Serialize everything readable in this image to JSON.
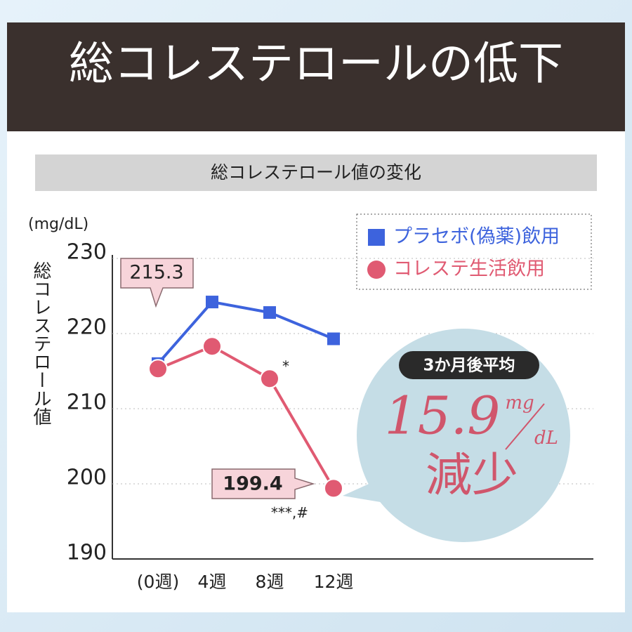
{
  "header": {
    "title": "総コレステロールの低下"
  },
  "chart_data": {
    "type": "line",
    "title": "総コレステロール値の変化",
    "y_unit": "(mg/dL)",
    "y_label": "総コレステロール値",
    "categories": [
      "(0週)",
      "4週",
      "8週",
      "12週"
    ],
    "ylim": [
      190,
      230
    ],
    "yticks": [
      190,
      200,
      210,
      220,
      230
    ],
    "grid": true,
    "legend": "top-right",
    "series": [
      {
        "name": "プラセボ(偽薬)飲用",
        "color": "#3d63dd",
        "marker": "square",
        "values": [
          216.0,
          224.2,
          222.8,
          219.3
        ]
      },
      {
        "name": "コレステ生活飲用",
        "color": "#e05a72",
        "marker": "circle",
        "values": [
          215.3,
          218.3,
          214.0,
          199.4
        ]
      }
    ],
    "annotations": [
      "*",
      "***,#"
    ],
    "callout": {
      "title": "3か月後平均",
      "value": "15.9",
      "unit_top": "mg",
      "unit_bottom": "dL",
      "text": "減少"
    }
  }
}
